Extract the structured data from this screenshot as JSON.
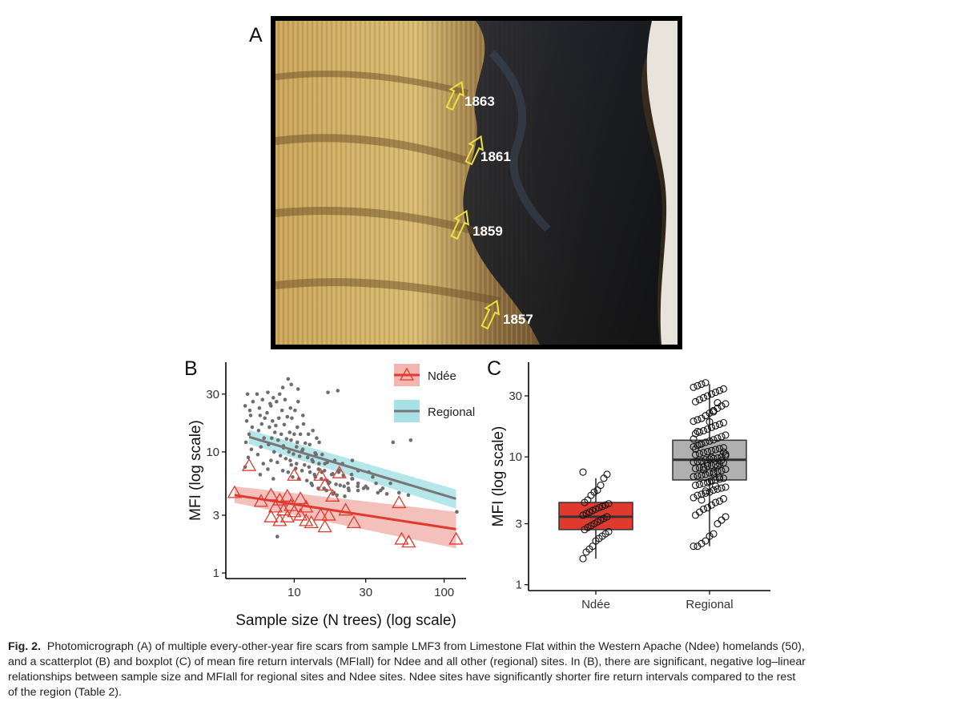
{
  "panels": {
    "a": "A",
    "b": "B",
    "c": "C"
  },
  "photo": {
    "year_labels": [
      "1863",
      "1861",
      "1859",
      "1857"
    ],
    "arrow_color": "#e8e23a",
    "label_color": "#ffffff"
  },
  "colors": {
    "ndee": "#e03a2e",
    "ndee_band": "#f2b5b0",
    "regional_line": "#777777",
    "regional_band": "#a8e2e6",
    "regional_points": "#6e6e6e",
    "box_ndee": "#e03a2e",
    "box_regional": "#b0b0b0"
  },
  "chart_data": [
    {
      "type": "scatter",
      "panel": "B",
      "xlabel": "Sample size (N trees) (log scale)",
      "ylabel": "MFI (log scale)",
      "x_scale": "log",
      "y_scale": "log",
      "xlim": [
        3.5,
        140
      ],
      "ylim": [
        0.9,
        55
      ],
      "x_ticks": [
        {
          "v": 10,
          "label": "10"
        },
        {
          "v": 30,
          "label": "30"
        },
        {
          "v": 100,
          "label": "100"
        }
      ],
      "y_ticks": [
        {
          "v": 1,
          "label": "1"
        },
        {
          "v": 3,
          "label": "3"
        },
        {
          "v": 10,
          "label": "10"
        },
        {
          "v": 30,
          "label": "30"
        }
      ],
      "legend": {
        "position": "top-right",
        "entries": [
          "Ndée",
          "Regional"
        ]
      },
      "grid": false,
      "series": [
        {
          "name": "Ndée",
          "marker": "open-triangle",
          "x": [
            4,
            5,
            6,
            7,
            7,
            7.5,
            8,
            8,
            8.5,
            9,
            9,
            9.5,
            10,
            10,
            11,
            11,
            12,
            12,
            13,
            15,
            15,
            16,
            16,
            17,
            18,
            20,
            22,
            25,
            50,
            52,
            58,
            120
          ],
          "y": [
            4.6,
            7.7,
            3.9,
            4.4,
            2.9,
            3.5,
            4.0,
            2.7,
            3.3,
            4.3,
            2.9,
            3.6,
            3.2,
            6.4,
            3.0,
            4.1,
            2.7,
            3.5,
            2.6,
            6.4,
            3.0,
            5.3,
            2.4,
            3.0,
            4.3,
            6.7,
            3.3,
            2.6,
            3.8,
            1.9,
            1.8,
            1.9
          ]
        },
        {
          "name": "Regional",
          "marker": "point",
          "x": [
            5,
            5,
            5,
            5,
            5,
            5,
            5,
            5,
            5,
            5,
            5,
            5,
            6,
            6,
            6,
            6,
            6,
            6,
            6,
            6,
            6,
            6,
            6,
            6,
            7,
            7,
            7,
            7,
            7,
            7,
            7,
            7,
            7,
            7,
            7,
            7,
            7,
            7,
            8,
            8,
            8,
            8,
            8,
            8,
            8,
            8,
            8,
            8,
            8,
            8,
            8,
            9,
            9,
            9,
            9,
            9,
            9,
            9,
            9,
            9,
            9,
            9,
            9,
            9,
            10,
            10,
            10,
            10,
            10,
            10,
            10,
            10,
            10,
            10,
            10,
            11,
            11,
            11,
            11,
            11,
            11,
            11,
            11,
            11,
            12,
            12,
            12,
            12,
            12,
            12,
            12,
            12,
            13,
            13,
            13,
            13,
            13,
            13,
            13,
            14,
            14,
            14,
            14,
            14,
            14,
            15,
            15,
            15,
            15,
            15,
            15,
            16,
            16,
            16,
            16,
            16,
            17,
            17,
            17,
            17,
            18,
            18,
            18,
            18,
            19,
            19,
            19,
            20,
            20,
            20,
            20,
            21,
            21,
            22,
            22,
            22,
            23,
            23,
            24,
            24,
            25,
            25,
            26,
            26,
            27,
            28,
            28,
            30,
            30,
            32,
            33,
            34,
            36,
            38,
            40,
            42,
            44,
            46,
            50,
            55,
            62,
            120
          ],
          "y": [
            7.5,
            9,
            10.5,
            12,
            14,
            16,
            18,
            22,
            26,
            30,
            20,
            24,
            6.5,
            8,
            9.5,
            11,
            13,
            15,
            17,
            19,
            23,
            27,
            30,
            20,
            6,
            7.2,
            8.5,
            10,
            11.5,
            13,
            14.5,
            16,
            18,
            21,
            25,
            28,
            31,
            24,
            7,
            8.2,
            9.3,
            10.8,
            12.5,
            14,
            16.5,
            19,
            22,
            26,
            30,
            34,
            2.0,
            6.8,
            7.8,
            8.8,
            10,
            11.2,
            12.8,
            14.5,
            16.8,
            19.5,
            23,
            27,
            40,
            36,
            6.2,
            7.3,
            8.5,
            9.6,
            11,
            12.5,
            14,
            16,
            19,
            22,
            26,
            6,
            7,
            8,
            9.2,
            10.5,
            12,
            14,
            17,
            33,
            5.8,
            6.8,
            7.8,
            9,
            10.2,
            11.8,
            14,
            20,
            5.5,
            6.5,
            7.5,
            8.6,
            9.8,
            11.5,
            15,
            5.3,
            6.2,
            7.2,
            8.3,
            9.5,
            12,
            5,
            6,
            7,
            8,
            9.5,
            13,
            5,
            5.8,
            6.8,
            8,
            31,
            4.8,
            5.6,
            6.6,
            8.2,
            4.6,
            5.5,
            6.5,
            8.5,
            4.5,
            5.4,
            7,
            4.4,
            5.3,
            6.4,
            32,
            5.2,
            6.8,
            4.3,
            5.5,
            8,
            5,
            6.5,
            4.8,
            6,
            5.2,
            8.5,
            4.8,
            6,
            5.5,
            5,
            7,
            5.2,
            6.8,
            5,
            6.2,
            4.6,
            5.5,
            5,
            4.8,
            4.5,
            12,
            5.5,
            4.6,
            4.4,
            12.5,
            3.2
          ]
        }
      ],
      "fits": [
        {
          "series": "Ndée",
          "x": [
            4,
            120
          ],
          "y": [
            4.4,
            2.3
          ],
          "ci_low": [
            3.8,
            1.6
          ],
          "ci_high": [
            5.2,
            3.2
          ]
        },
        {
          "series": "Regional",
          "x": [
            5,
            120
          ],
          "y": [
            13.3,
            4.1
          ],
          "ci_low": [
            11.6,
            3.4
          ],
          "ci_high": [
            15.2,
            4.9
          ]
        }
      ]
    },
    {
      "type": "box",
      "panel": "C",
      "ylabel": "MFI (log scale)",
      "y_scale": "log",
      "ylim": [
        0.9,
        55
      ],
      "categories": [
        "Ndée",
        "Regional"
      ],
      "y_ticks": [
        {
          "v": 1,
          "label": "1"
        },
        {
          "v": 3,
          "label": "3"
        },
        {
          "v": 10,
          "label": "10"
        },
        {
          "v": 30,
          "label": "30"
        }
      ],
      "boxes": [
        {
          "name": "Ndée",
          "q1": 2.7,
          "median": 3.4,
          "q3": 4.4,
          "whisker_low": 1.6,
          "whisker_high": 6.8
        },
        {
          "name": "Regional",
          "q1": 6.6,
          "median": 9.5,
          "q3": 13.5,
          "whisker_low": 2.0,
          "whisker_high": 37
        }
      ],
      "points": [
        {
          "category": "Ndée",
          "y": [
            1.6,
            1.8,
            1.9,
            2.0,
            2.2,
            2.3,
            2.4,
            2.5,
            2.6,
            2.7,
            2.8,
            2.9,
            3.0,
            3.1,
            3.2,
            3.3,
            3.4,
            3.5,
            3.6,
            3.7,
            3.8,
            3.9,
            4.0,
            4.1,
            4.2,
            4.3,
            4.4,
            4.6,
            5.0,
            5.3,
            5.5,
            6.0,
            6.8,
            7.3,
            7.6
          ]
        },
        {
          "category": "Regional",
          "y": [
            2.0,
            2.0,
            2.1,
            2.2,
            2.4,
            2.5,
            3.0,
            3.2,
            3.4,
            3.5,
            3.7,
            3.9,
            4.0,
            4.2,
            4.4,
            4.5,
            4.7,
            4.8,
            5.0,
            5.1,
            5.2,
            5.3,
            5.5,
            5.6,
            5.7,
            5.8,
            6.0,
            6.1,
            6.2,
            6.3,
            6.5,
            6.6,
            6.7,
            6.8,
            7.0,
            7.1,
            7.2,
            7.3,
            7.5,
            7.6,
            7.7,
            7.8,
            8.0,
            8.1,
            8.2,
            8.3,
            8.5,
            8.6,
            8.7,
            8.8,
            9.0,
            9.1,
            9.2,
            9.3,
            9.5,
            9.6,
            9.7,
            9.8,
            10,
            10.2,
            10.4,
            10.6,
            10.8,
            11,
            11.2,
            11.4,
            11.6,
            11.8,
            12,
            12.3,
            12.6,
            13,
            13.3,
            13.6,
            14,
            14.4,
            14.8,
            15.2,
            15.6,
            16,
            16.5,
            17,
            17.5,
            18,
            18.5,
            19,
            19.5,
            20,
            21,
            22,
            23,
            24,
            25,
            26,
            27,
            28,
            29,
            30,
            31,
            32,
            33,
            34,
            35,
            36,
            37,
            38,
            6.4,
            7.4,
            8.4,
            9.4,
            10.5,
            11.5,
            12.5,
            7.9,
            8.9,
            9.9,
            5.9,
            6.9,
            10.9,
            13.8,
            15.8,
            4.6,
            5.4,
            18.8,
            22.5,
            26.5
          ]
        }
      ]
    }
  ],
  "caption": {
    "label": "Fig. 2.",
    "lines": [
      "Photomicrograph (A) of multiple every-other-year fire scars from sample LMF3 from Limestone Flat within the Western Apache (Ndee) homelands (50),",
      "and a scatterplot (B) and boxplot (C) of mean fire return intervals (MFIall) for Ndee and all other (regional) sites. In (B), there are significant, negative log–linear",
      "relationships between sample size and MFIall for regional sites and Ndee sites. Ndee sites have significantly shorter fire return intervals compared to the rest",
      "of the region (Table 2)."
    ]
  }
}
